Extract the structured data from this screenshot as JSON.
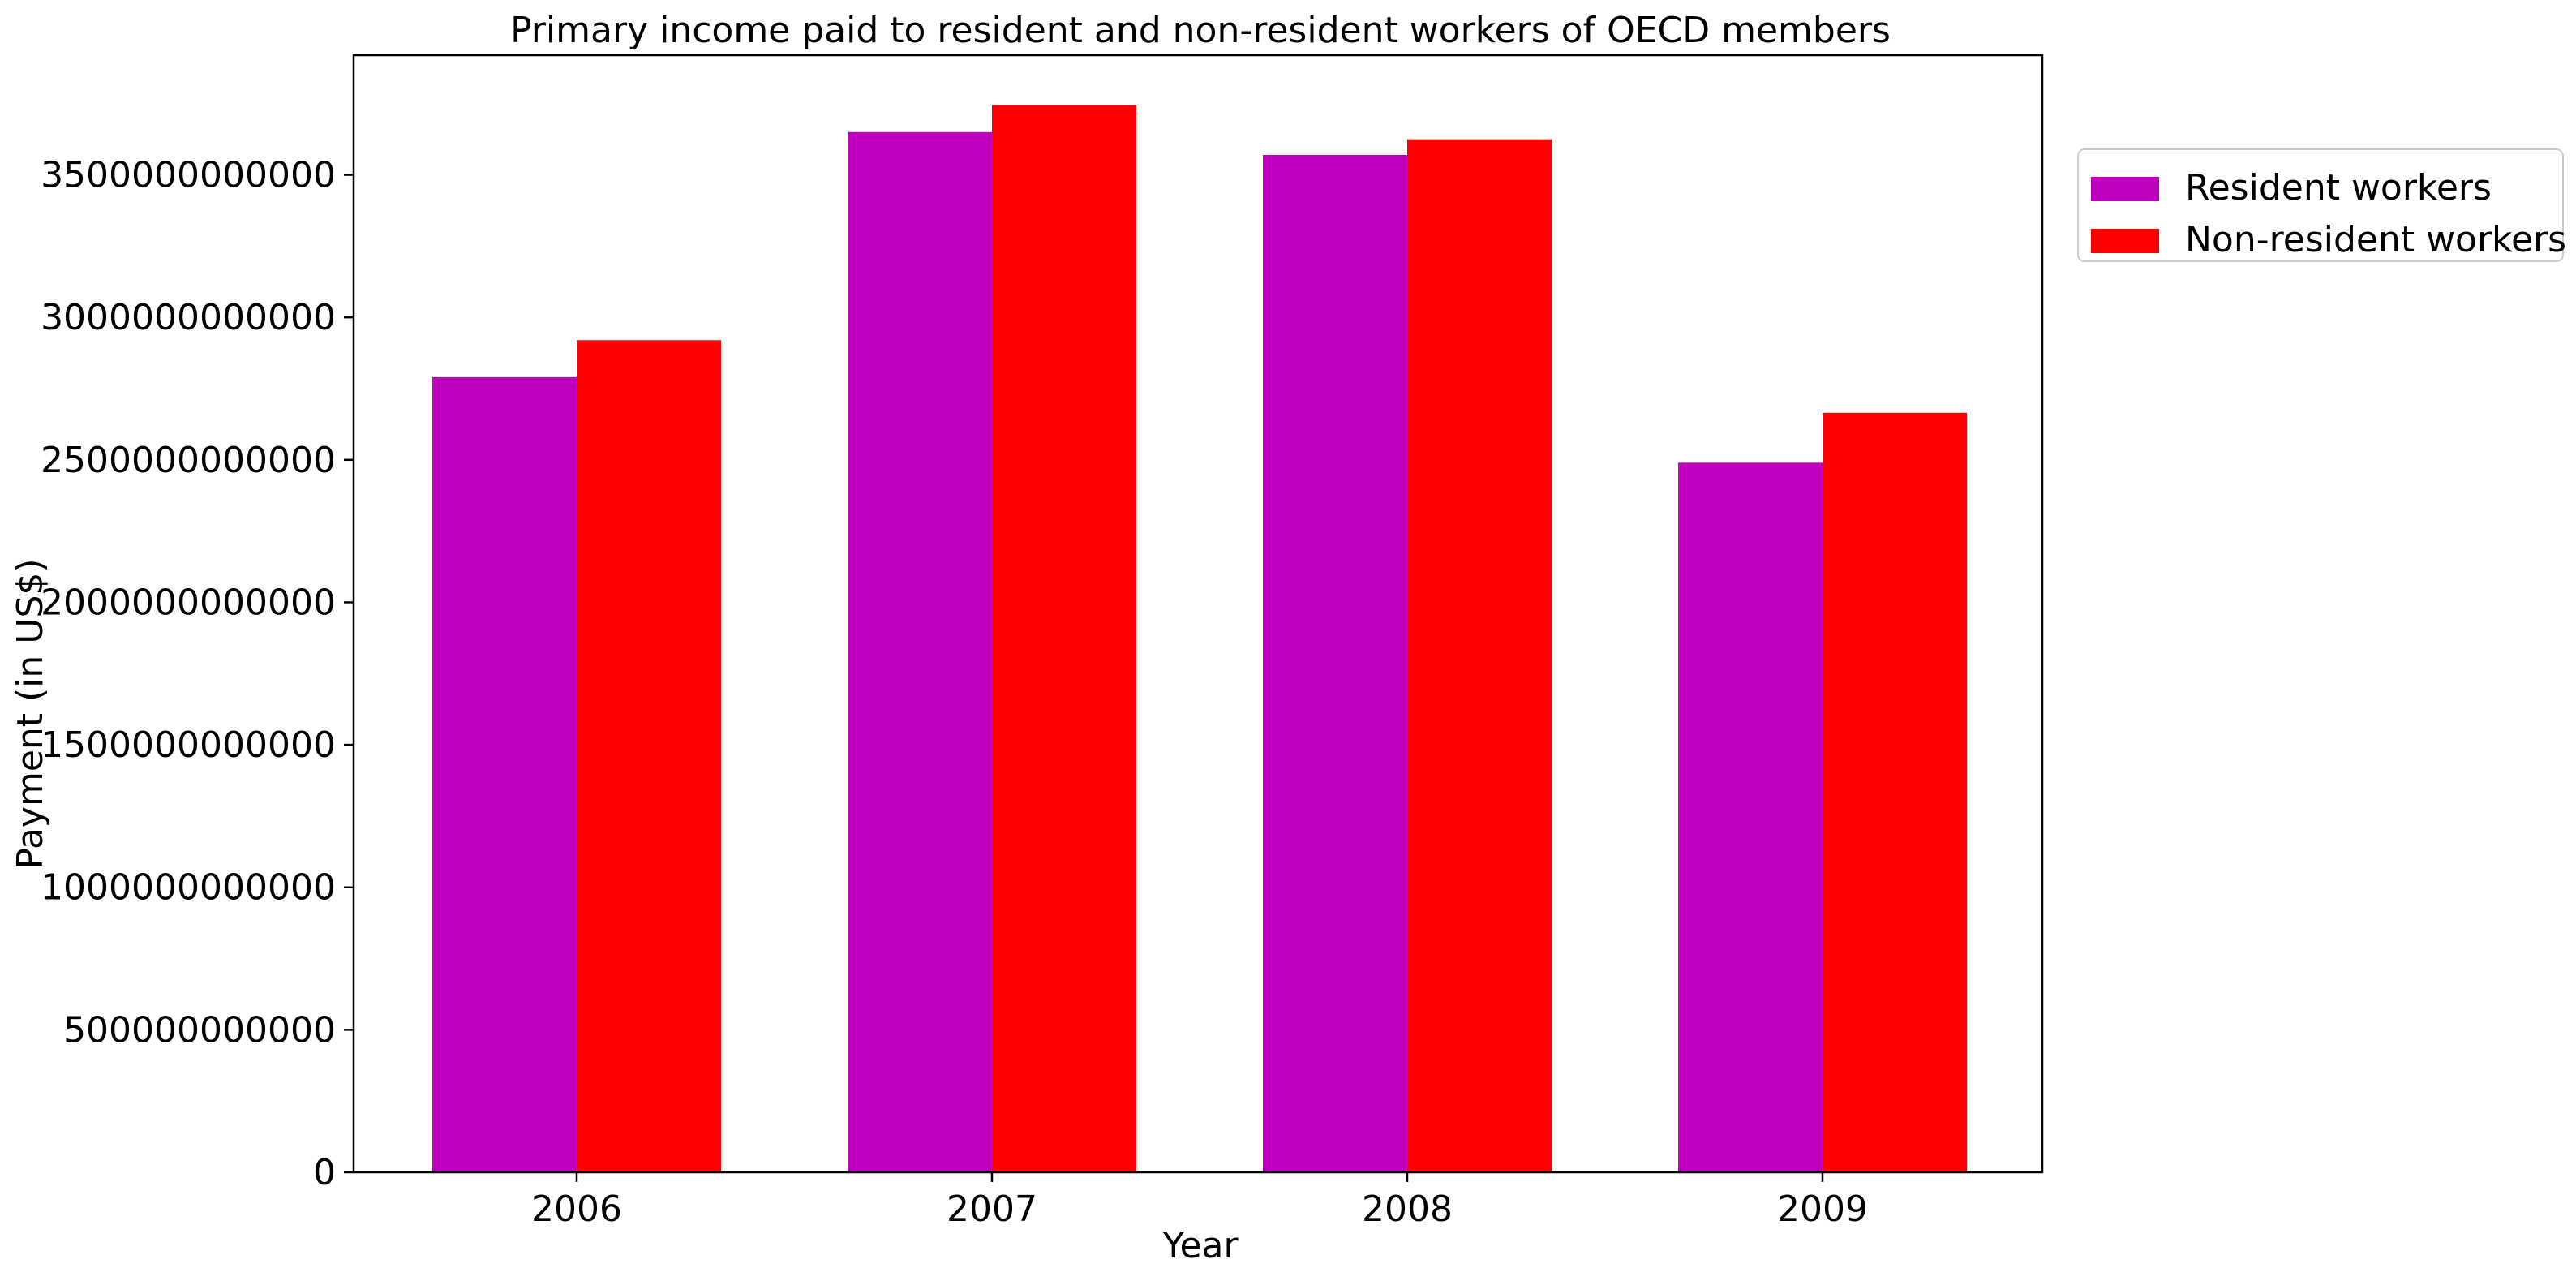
{
  "chart_data": {
    "type": "bar",
    "title": "Primary income paid to resident and non-resident workers of OECD members",
    "xlabel": "Year",
    "ylabel": "Payment (in US$)",
    "categories": [
      "2006",
      "2007",
      "2008",
      "2009"
    ],
    "series": [
      {
        "name": "Resident workers",
        "color": "#bf00bf",
        "values": [
          2790000000000,
          3650000000000,
          3570000000000,
          2490000000000
        ]
      },
      {
        "name": "Non-resident workers",
        "color": "#ff0000",
        "values": [
          2920000000000,
          3745000000000,
          3625000000000,
          2665000000000
        ]
      }
    ],
    "ylim": [
      0,
      3920000000000
    ],
    "yticks": [
      0,
      500000000000,
      1000000000000,
      1500000000000,
      2000000000000,
      2500000000000,
      3000000000000,
      3500000000000
    ],
    "ytick_labels": [
      "0",
      "500000000000",
      "1000000000000",
      "1500000000000",
      "2000000000000",
      "2500000000000",
      "3000000000000",
      "3500000000000"
    ],
    "grid": false,
    "legend_position": "outside-right-top"
  }
}
